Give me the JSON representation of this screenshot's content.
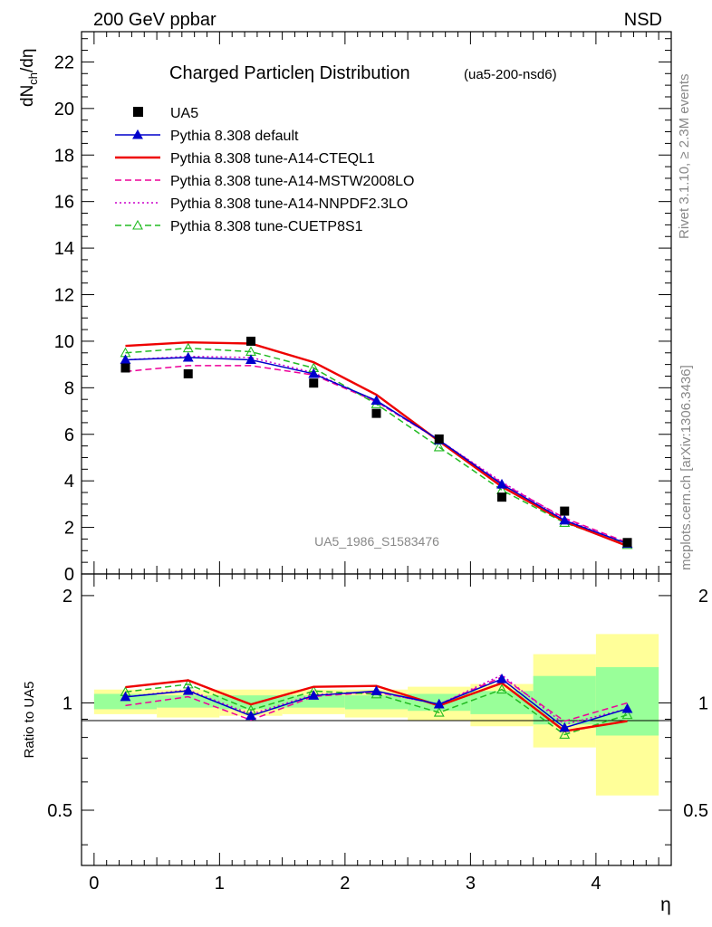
{
  "header": {
    "left": "200 GeV ppbar",
    "right": "NSD"
  },
  "side_text": {
    "rivet": "Rivet 3.1.10, ≥ 2.3M events",
    "mcplots": "mcplots.cern.ch [arXiv:1306.3436]"
  },
  "watermark": "UA5_1986_S1583476",
  "chart_data": {
    "type": "line",
    "title": "Charged Particleη Distribution",
    "subtitle": "(ua5-200-nsd6)",
    "xlabel": "η",
    "ylabel_main": "dN_ch/dη",
    "ylabel_ratio": "Ratio to UA5",
    "xlim": [
      -0.1,
      4.6
    ],
    "ylim_main": [
      0,
      23.3
    ],
    "ylim_ratio": [
      0.35,
      2.3
    ],
    "x_ticks": [
      "0",
      "1",
      "2",
      "3",
      "4"
    ],
    "y_ticks_main": [
      "0",
      "2",
      "4",
      "6",
      "8",
      "10",
      "12",
      "14",
      "16",
      "18",
      "20",
      "22"
    ],
    "y_ticks_ratio": [
      "0.5",
      "1",
      "2"
    ],
    "x": [
      0.25,
      0.75,
      1.25,
      1.75,
      2.25,
      2.75,
      3.25,
      3.75,
      4.25
    ],
    "data": {
      "name": "UA5",
      "values": [
        8.85,
        8.6,
        10.0,
        8.2,
        6.9,
        5.8,
        3.3,
        2.7,
        1.35
      ],
      "band_inner": [
        [
          0.96,
          1.06
        ],
        [
          0.97,
          1.05
        ],
        [
          0.96,
          1.05
        ],
        [
          0.97,
          1.05
        ],
        [
          0.96,
          1.05
        ],
        [
          0.95,
          1.06
        ],
        [
          0.93,
          1.08
        ],
        [
          0.87,
          1.19
        ],
        [
          0.81,
          1.26
        ]
      ],
      "band_outer": [
        [
          0.93,
          1.09
        ],
        [
          0.91,
          1.09
        ],
        [
          0.92,
          1.09
        ],
        [
          0.93,
          1.09
        ],
        [
          0.91,
          1.09
        ],
        [
          0.89,
          1.11
        ],
        [
          0.86,
          1.13
        ],
        [
          0.75,
          1.37
        ],
        [
          0.55,
          1.56
        ]
      ]
    },
    "series": [
      {
        "name": "Pythia 8.308 default",
        "color": "#0000cc",
        "style": "solid",
        "marker": "triangle-filled",
        "values": [
          9.2,
          9.3,
          9.2,
          8.6,
          7.45,
          5.75,
          3.85,
          2.3,
          1.3
        ]
      },
      {
        "name": "Pythia 8.308 tune-A14-CTEQL1",
        "color": "#ee0000",
        "style": "solid-thick",
        "marker": "none",
        "values": [
          9.8,
          9.95,
          9.9,
          9.1,
          7.7,
          5.7,
          3.75,
          2.25,
          1.2
        ]
      },
      {
        "name": "Pythia 8.308 tune-A14-MSTW2008LO",
        "color": "#ee0099",
        "style": "dashed",
        "marker": "none",
        "values": [
          8.7,
          8.95,
          8.95,
          8.55,
          7.4,
          5.75,
          3.9,
          2.4,
          1.35
        ]
      },
      {
        "name": "Pythia 8.308 tune-A14-NNPDF2.3LO",
        "color": "#cc00cc",
        "style": "dotted",
        "marker": "none",
        "values": [
          9.2,
          9.35,
          9.3,
          8.65,
          7.4,
          5.75,
          3.95,
          2.35,
          1.3
        ]
      },
      {
        "name": "Pythia 8.308 tune-CUETP8S1",
        "color": "#22bb22",
        "style": "dashed",
        "marker": "triangle-open",
        "values": [
          9.5,
          9.7,
          9.55,
          8.85,
          7.3,
          5.45,
          3.6,
          2.2,
          1.25
        ]
      }
    ]
  }
}
